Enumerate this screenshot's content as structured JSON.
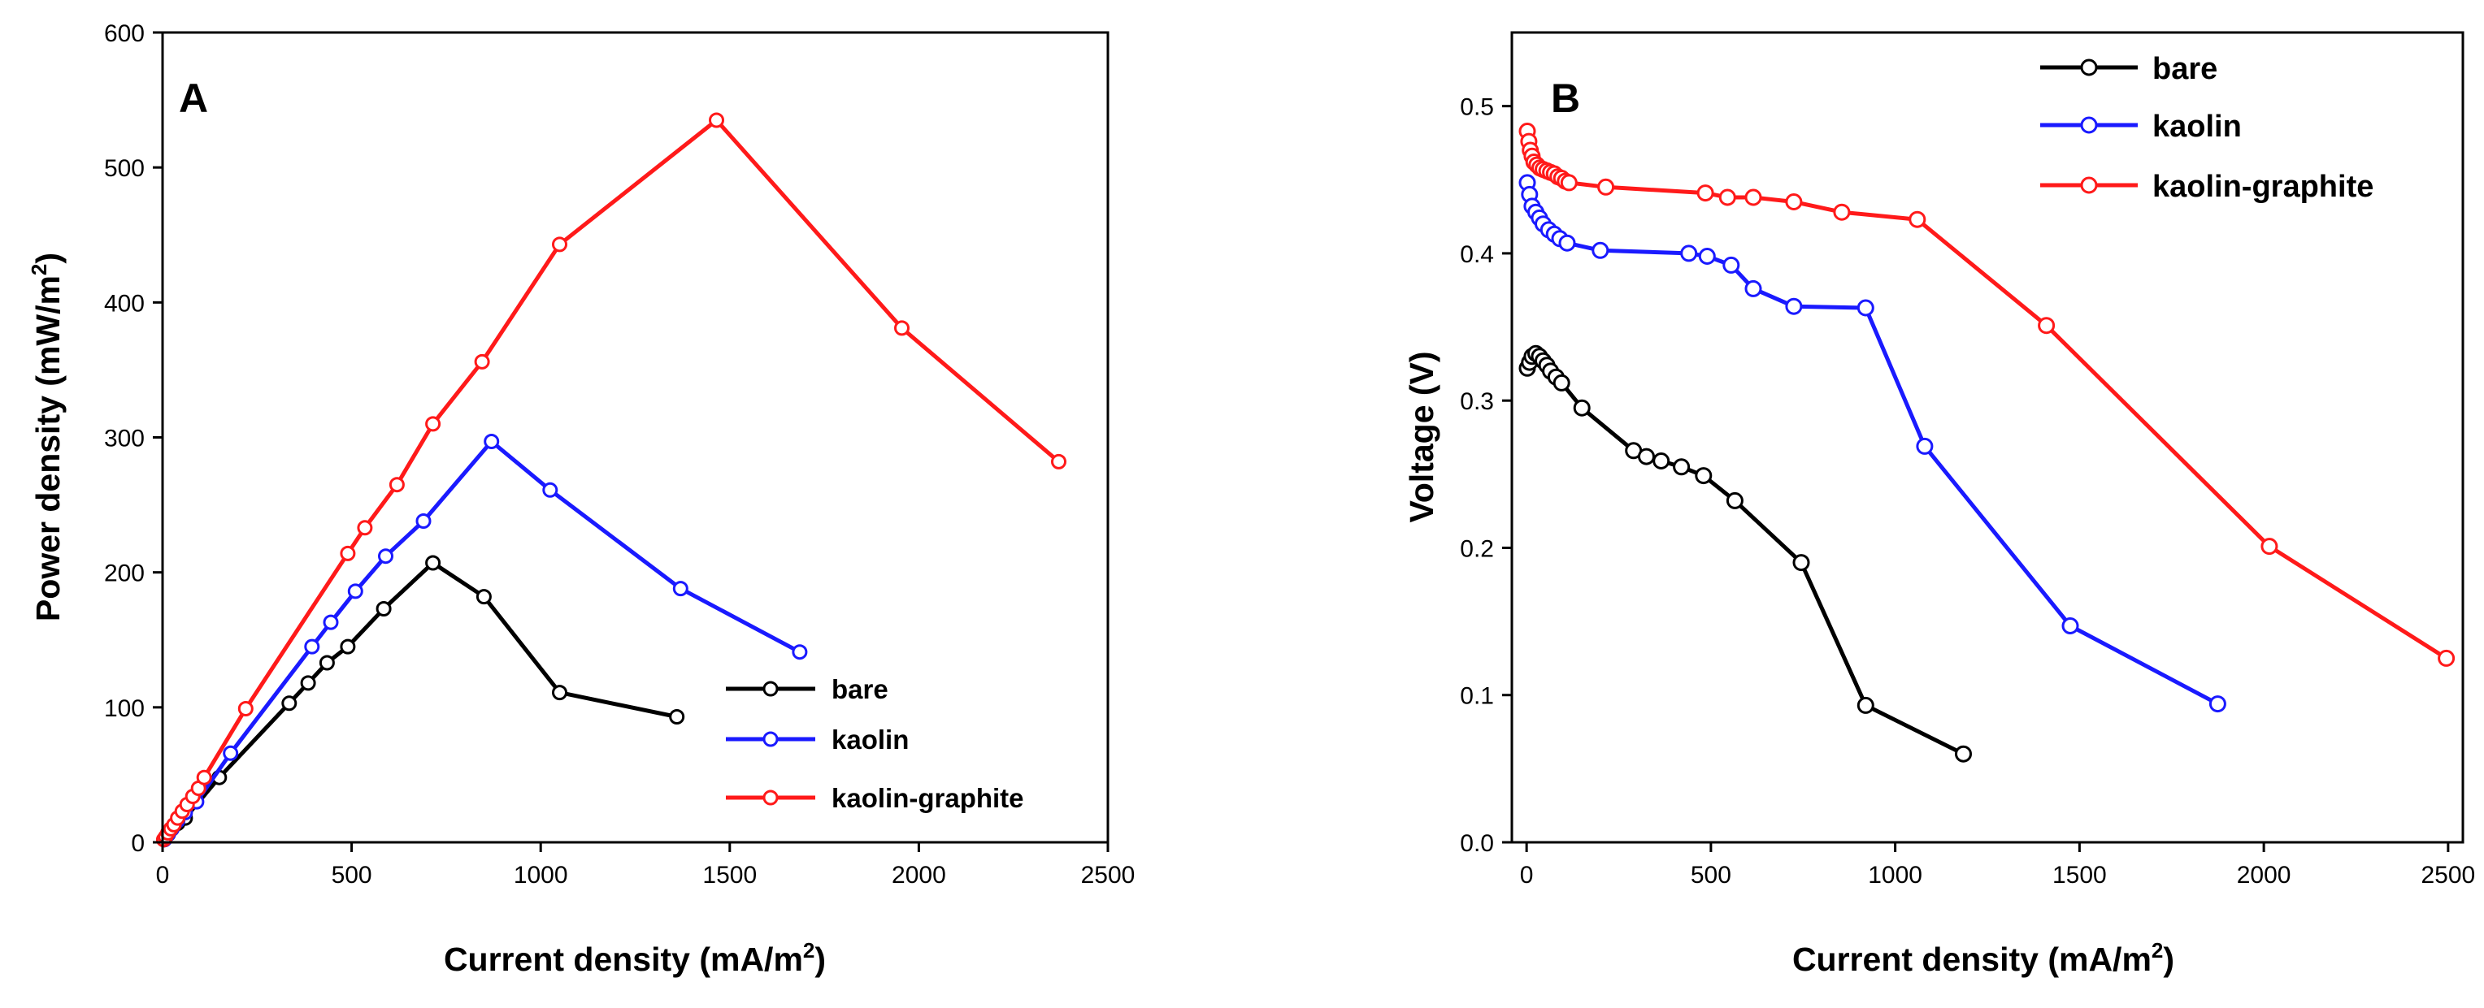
{
  "chart_data": [
    {
      "type": "line",
      "panel": "A",
      "xlabel_main": "Current density (mA/m",
      "xlabel_sup": "2",
      "xlabel_end": ")",
      "ylabel_main": "Power density (mW/m",
      "ylabel_sup": "2",
      "ylabel_end": ")",
      "xlim": [
        0,
        2500
      ],
      "ylim": [
        0,
        600
      ],
      "xticks": [
        0,
        500,
        1000,
        1500,
        2000,
        2500
      ],
      "yticks": [
        0,
        100,
        200,
        300,
        400,
        500,
        600
      ],
      "legend_position": "bottom-right",
      "grid": false,
      "series": [
        {
          "name": "bare",
          "color": "#000000",
          "x": [
            5,
            15,
            25,
            40,
            60,
            150,
            335,
            385,
            435,
            490,
            585,
            715,
            850,
            1050,
            1360
          ],
          "y": [
            2,
            6,
            10,
            14,
            18,
            48,
            103,
            118,
            133,
            145,
            173,
            207,
            182,
            111,
            93
          ]
        },
        {
          "name": "kaolin",
          "color": "#1a1aff",
          "x": [
            5,
            15,
            25,
            40,
            60,
            90,
            180,
            395,
            445,
            510,
            590,
            690,
            870,
            1025,
            1370,
            1685
          ],
          "y": [
            2,
            6,
            10,
            16,
            22,
            30,
            66,
            145,
            163,
            186,
            212,
            238,
            297,
            261,
            188,
            141
          ]
        },
        {
          "name": "kaolin-graphite",
          "color": "#ff1a1a",
          "x": [
            3,
            8,
            14,
            22,
            30,
            40,
            52,
            65,
            80,
            95,
            110,
            220,
            490,
            535,
            620,
            715,
            845,
            1050,
            1465,
            1955,
            2370
          ],
          "y": [
            2,
            4,
            7,
            10,
            13,
            18,
            23,
            28,
            34,
            40,
            48,
            99,
            214,
            233,
            265,
            310,
            356,
            443,
            535,
            381,
            282
          ]
        }
      ]
    },
    {
      "type": "line",
      "panel": "B",
      "xlabel_main": "Current density (mA/m",
      "xlabel_sup": "2",
      "xlabel_end": ")",
      "ylabel": "Voltage (V)",
      "xlim": [
        -40,
        2540
      ],
      "ylim": [
        0,
        0.55
      ],
      "xticks": [
        0,
        500,
        1000,
        1500,
        2000,
        2500
      ],
      "yticks": [
        0.0,
        0.1,
        0.2,
        0.3,
        0.4,
        0.5
      ],
      "yticks_labels": [
        "0.0",
        "0.1",
        "0.2",
        "0.3",
        "0.4",
        "0.5"
      ],
      "legend_position": "top-right",
      "grid": false,
      "series": [
        {
          "name": "bare",
          "color": "#000000",
          "x": [
            2,
            8,
            15,
            25,
            35,
            45,
            55,
            65,
            80,
            95,
            150,
            290,
            325,
            365,
            420,
            480,
            565,
            745,
            920,
            1185
          ],
          "y": [
            0.322,
            0.326,
            0.33,
            0.332,
            0.33,
            0.327,
            0.324,
            0.32,
            0.316,
            0.312,
            0.295,
            0.266,
            0.262,
            0.259,
            0.255,
            0.249,
            0.232,
            0.19,
            0.093,
            0.06
          ]
        },
        {
          "name": "kaolin",
          "color": "#1a1aff",
          "x": [
            2,
            8,
            15,
            25,
            35,
            45,
            60,
            75,
            90,
            110,
            200,
            440,
            490,
            555,
            615,
            725,
            920,
            1080,
            1475,
            1875
          ],
          "y": [
            0.448,
            0.44,
            0.432,
            0.428,
            0.424,
            0.42,
            0.416,
            0.413,
            0.41,
            0.407,
            0.402,
            0.4,
            0.398,
            0.392,
            0.376,
            0.364,
            0.363,
            0.269,
            0.147,
            0.094
          ]
        },
        {
          "name": "kaolin-graphite",
          "color": "#ff1a1a",
          "x": [
            2,
            6,
            10,
            15,
            20,
            28,
            36,
            45,
            55,
            65,
            75,
            85,
            95,
            105,
            115,
            215,
            485,
            545,
            615,
            725,
            855,
            1060,
            1410,
            2015,
            2495
          ],
          "y": [
            0.483,
            0.476,
            0.47,
            0.466,
            0.462,
            0.46,
            0.458,
            0.457,
            0.456,
            0.455,
            0.454,
            0.452,
            0.451,
            0.449,
            0.448,
            0.445,
            0.441,
            0.438,
            0.438,
            0.435,
            0.428,
            0.423,
            0.351,
            0.201,
            0.125
          ]
        }
      ]
    }
  ]
}
